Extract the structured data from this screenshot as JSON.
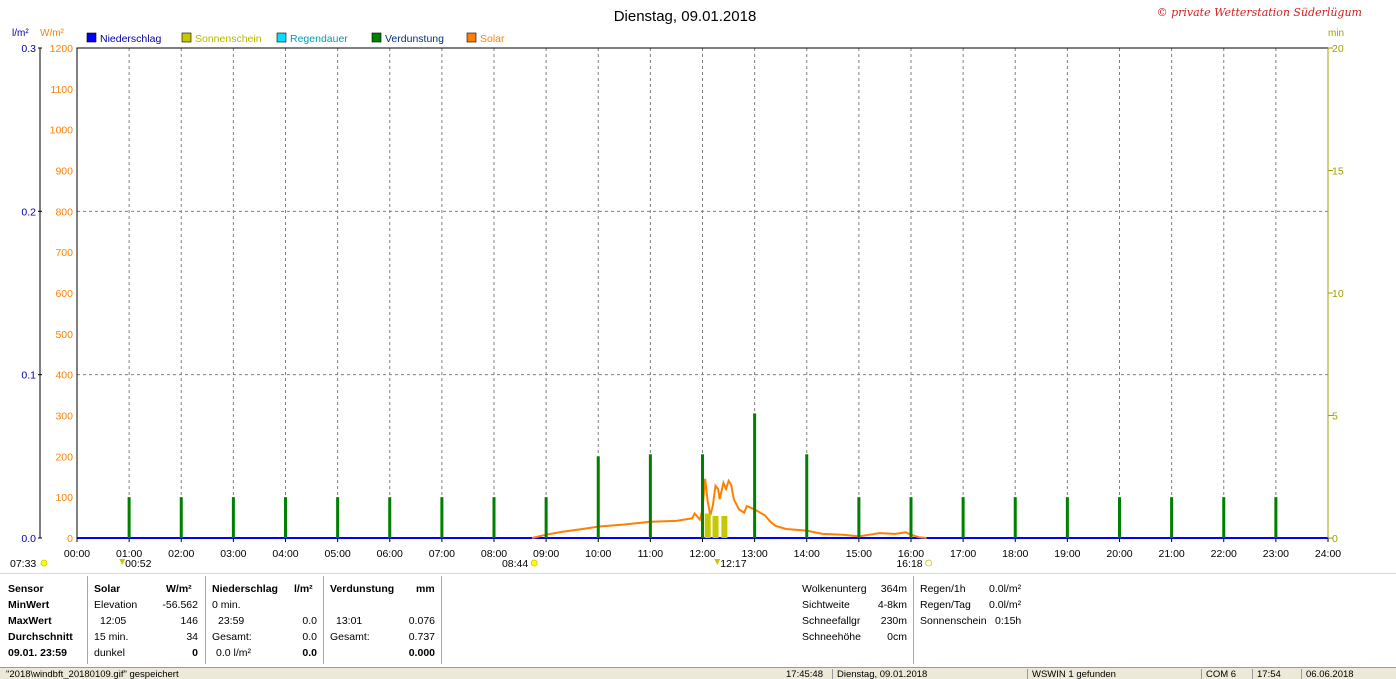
{
  "title": "Dienstag, 09.01.2018",
  "copyright": "© private Wetterstation Süderlügum",
  "units": {
    "left_blue": "l/m²",
    "left_orange": "W/m²",
    "right": "min"
  },
  "legend": [
    {
      "label": "Niederschlag",
      "color": "#0000ff",
      "text_color": "#0000aa"
    },
    {
      "label": "Sonnenschein",
      "color": "#c8c800",
      "text_color": "#b8b800"
    },
    {
      "label": "Regendauer",
      "color": "#00e0ff",
      "text_color": "#00a0b0"
    },
    {
      "label": "Verdunstung",
      "color": "#008000",
      "text_color": "#003080"
    },
    {
      "label": "Solar",
      "color": "#ff8000",
      "text_color": "#ff8000"
    }
  ],
  "chart_data": {
    "type": "bar",
    "x_range": [
      "00:00",
      "24:00"
    ],
    "x_ticks": [
      "00:00",
      "01:00",
      "02:00",
      "03:00",
      "04:00",
      "05:00",
      "06:00",
      "07:00",
      "08:00",
      "09:00",
      "10:00",
      "11:00",
      "12:00",
      "13:00",
      "14:00",
      "15:00",
      "16:00",
      "17:00",
      "18:00",
      "19:00",
      "20:00",
      "21:00",
      "22:00",
      "23:00",
      "24:00"
    ],
    "left_blue_axis": {
      "unit": "l/m²",
      "range": [
        0,
        0.3
      ],
      "ticks": [
        "0.0",
        "0.1",
        "0.2",
        "0.3"
      ]
    },
    "left_orange_axis": {
      "unit": "W/m²",
      "range": [
        0,
        1200
      ],
      "ticks": [
        "0",
        "100",
        "200",
        "300",
        "400",
        "500",
        "600",
        "700",
        "800",
        "900",
        "1000",
        "1100",
        "1200"
      ]
    },
    "right_axis": {
      "unit": "min",
      "range": [
        0,
        20
      ],
      "ticks": [
        "0",
        "5",
        "10",
        "15",
        "20"
      ]
    },
    "grid": "dashed",
    "series": [
      {
        "name": "Niederschlag",
        "axis": "left_blue",
        "kind": "line",
        "points": [
          [
            0,
            0
          ],
          [
            24,
            0
          ]
        ]
      },
      {
        "name": "Verdunstung",
        "axis": "left_orange",
        "kind": "bars",
        "points": [
          [
            1,
            100
          ],
          [
            2,
            100
          ],
          [
            3,
            100
          ],
          [
            4,
            100
          ],
          [
            5,
            100
          ],
          [
            6,
            100
          ],
          [
            7,
            100
          ],
          [
            8,
            100
          ],
          [
            9,
            100
          ],
          [
            10,
            200
          ],
          [
            11,
            205
          ],
          [
            12,
            205
          ],
          [
            13,
            305
          ],
          [
            14,
            205
          ],
          [
            15,
            100
          ],
          [
            16,
            100
          ],
          [
            17,
            100
          ],
          [
            18,
            100
          ],
          [
            19,
            100
          ],
          [
            20,
            100
          ],
          [
            21,
            100
          ],
          [
            22,
            100
          ],
          [
            23,
            100
          ]
        ]
      },
      {
        "name": "Sonnenschein",
        "axis": "right",
        "kind": "bars",
        "points": [
          [
            12.1,
            1.0
          ],
          [
            12.25,
            0.9
          ],
          [
            12.42,
            0.9
          ]
        ]
      },
      {
        "name": "Solar",
        "axis": "left_orange",
        "kind": "line",
        "points": [
          [
            8.73,
            0
          ],
          [
            9.0,
            8
          ],
          [
            9.3,
            15
          ],
          [
            9.7,
            22
          ],
          [
            10.0,
            28
          ],
          [
            10.5,
            33
          ],
          [
            11.0,
            40
          ],
          [
            11.5,
            42
          ],
          [
            11.8,
            48
          ],
          [
            11.85,
            60
          ],
          [
            11.95,
            45
          ],
          [
            12.0,
            70
          ],
          [
            12.05,
            145
          ],
          [
            12.1,
            90
          ],
          [
            12.15,
            55
          ],
          [
            12.2,
            80
          ],
          [
            12.25,
            128
          ],
          [
            12.3,
            120
          ],
          [
            12.33,
            95
          ],
          [
            12.4,
            135
          ],
          [
            12.45,
            120
          ],
          [
            12.5,
            140
          ],
          [
            12.55,
            130
          ],
          [
            12.6,
            95
          ],
          [
            12.7,
            70
          ],
          [
            12.8,
            62
          ],
          [
            12.85,
            78
          ],
          [
            13.0,
            70
          ],
          [
            13.2,
            55
          ],
          [
            13.3,
            40
          ],
          [
            13.4,
            30
          ],
          [
            13.6,
            22
          ],
          [
            14.0,
            18
          ],
          [
            14.3,
            10
          ],
          [
            14.7,
            8
          ],
          [
            15.0,
            4
          ],
          [
            15.2,
            8
          ],
          [
            15.4,
            12
          ],
          [
            15.7,
            10
          ],
          [
            15.9,
            14
          ],
          [
            16.0,
            8
          ],
          [
            16.15,
            2
          ],
          [
            16.3,
            0
          ]
        ]
      }
    ],
    "markers": {
      "top": [
        "07:33",
        "08:44",
        "16:18"
      ],
      "bottom": [
        "00:52",
        "12:17"
      ]
    }
  },
  "panel": {
    "col1": [
      "Sensor",
      "MinWert",
      "MaxWert",
      "Durchschnitt",
      "09.01. 23:59"
    ],
    "solar": {
      "header": "Solar",
      "unit": "W/m²",
      "rows": [
        [
          "Elevation",
          "-56.562"
        ],
        [
          "12:05",
          "146"
        ],
        [
          "15 min.",
          "34"
        ],
        [
          "dunkel",
          "0"
        ]
      ]
    },
    "niederschlag": {
      "header": "Niederschlag",
      "unit": "l/m²",
      "rows": [
        [
          "0 min.",
          ""
        ],
        [
          "23:59",
          "0.0"
        ],
        [
          "Gesamt:",
          "0.0"
        ],
        [
          "0.0 l/m²",
          "0.0"
        ]
      ]
    },
    "verdunstung": {
      "header": "Verdunstung",
      "unit": "mm",
      "rows": [
        [
          "",
          ""
        ],
        [
          "13:01",
          "0.076"
        ],
        [
          "Gesamt:",
          "0.737"
        ],
        [
          "",
          "0.000"
        ]
      ]
    },
    "right1": [
      [
        "Wolkenunterg",
        "364m"
      ],
      [
        "Sichtweite",
        "4-8km"
      ],
      [
        "Schneefallgr",
        "230m"
      ],
      [
        "Schneehöhe",
        "0cm"
      ]
    ],
    "right2": [
      [
        "Regen/1h",
        "0.0l/m²"
      ],
      [
        "Regen/Tag",
        "0.0l/m²"
      ],
      [
        "Sonnenschein",
        "0:15h"
      ]
    ]
  },
  "status": [
    "\"2018\\windbft_20180109.gif\" gespeichert",
    "17:45:48",
    "Dienstag, 09.01.2018",
    "WSWIN 1 gefunden",
    "COM 6",
    "17:54",
    "06.06.2018"
  ]
}
